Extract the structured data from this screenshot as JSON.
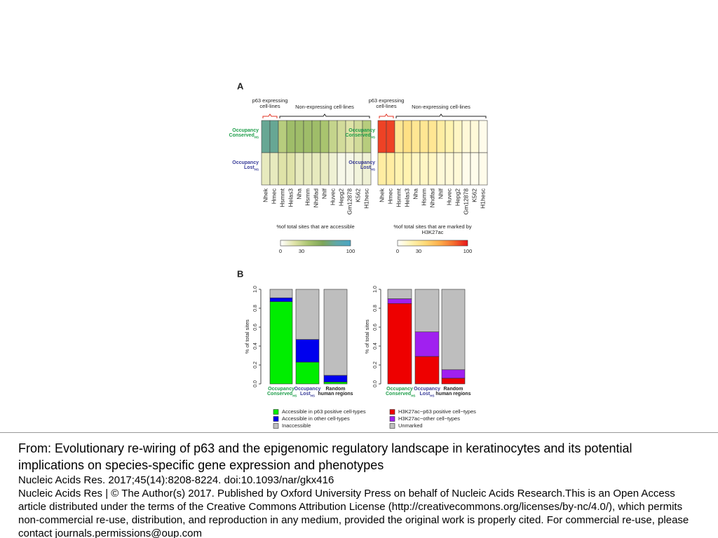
{
  "panels": [
    "A",
    "B"
  ],
  "chart_data": [
    {
      "type": "heatmap",
      "groups": [
        "p63 expressing cell-lines",
        "Non-expressing cell-lines"
      ],
      "rows": [
        {
          "lines": [
            "Occupancy",
            "Conserved"
          ],
          "subscript": "HS",
          "color": "#1e9e4a"
        },
        {
          "lines": [
            "Occupancy",
            "Lost"
          ],
          "subscript": "HS",
          "color": "#3a3e9a"
        }
      ],
      "columns": [
        "Nhek",
        "Hmec",
        "Hsmmt",
        "Helas3",
        "Nha",
        "Hsmm",
        "Nhdfad",
        "Nhlf",
        "Huvec",
        "Hepg2",
        "Gm12878",
        "K562",
        "H1hesc"
      ],
      "z": [
        [
          75,
          75,
          35,
          45,
          45,
          45,
          45,
          40,
          30,
          25,
          20,
          25,
          35
        ],
        [
          15,
          15,
          20,
          20,
          15,
          15,
          15,
          15,
          10,
          5,
          5,
          8,
          10
        ]
      ],
      "colorscale": [
        "#ffffff",
        "#dfe3a8",
        "#a9c46f",
        "#7fa658",
        "#5fa7a8",
        "#4aa6c4"
      ],
      "zlim": [
        0,
        100
      ],
      "zticks": [
        0,
        30,
        100
      ],
      "colorbar_label": "%of total sites that are accessible"
    },
    {
      "type": "heatmap",
      "groups": [
        "p63 expressing cell-lines",
        "Non-expressing cell-lines"
      ],
      "rows": [
        {
          "lines": [
            "Occupancy",
            "Conserved"
          ],
          "subscript": "HS",
          "color": "#1e9e4a"
        },
        {
          "lines": [
            "Occupancy",
            "Lost"
          ],
          "subscript": "HS",
          "color": "#3a3e9a"
        }
      ],
      "columns": [
        "Nhek",
        "Hmec",
        "Hsmmt",
        "Helas3",
        "Nha",
        "Hsmm",
        "Nhdfad",
        "Nhlf",
        "Huvec",
        "Hepg2",
        "Gm12878",
        "K562",
        "H1hesc"
      ],
      "z": [
        [
          90,
          90,
          30,
          35,
          30,
          30,
          30,
          25,
          20,
          15,
          10,
          10,
          5
        ],
        [
          25,
          25,
          20,
          20,
          15,
          15,
          15,
          10,
          10,
          10,
          5,
          5,
          5
        ]
      ],
      "colorscale": [
        "#ffffff",
        "#fff3b0",
        "#fed976",
        "#fdae4b",
        "#f46d2e",
        "#e8161b"
      ],
      "zlim": [
        0,
        100
      ],
      "zticks": [
        0,
        30,
        100
      ],
      "colorbar_label": "%of total sites that are marked by H3K27ac"
    },
    {
      "type": "stacked_bar",
      "y_label": "% of total sites",
      "categories": [
        "Occupancy Conserved",
        "Occupancy Lost",
        "Random human regions"
      ],
      "category_subscripts": [
        "HS",
        "HS",
        null
      ],
      "category_colors": [
        "#1e9e4a",
        "#3a3e9a",
        "#222222"
      ],
      "series": [
        {
          "name": "Accessible in p63 positive cell-types",
          "color": "#00ee00",
          "values": [
            0.87,
            0.23,
            0.02
          ]
        },
        {
          "name": "Accessible in other cell-types",
          "color": "#0000ee",
          "values": [
            0.04,
            0.24,
            0.07
          ]
        },
        {
          "name": "Inaccessible",
          "color": "#bebebe",
          "values": [
            0.09,
            0.53,
            0.91
          ]
        }
      ],
      "ylim": [
        0,
        1
      ],
      "yticks": [
        {
          "value": 0,
          "label": "0.0"
        },
        0.2,
        0.4,
        0.6,
        0.8,
        {
          "value": 1,
          "label": "1.0"
        }
      ]
    },
    {
      "type": "stacked_bar",
      "y_label": "% of total sites",
      "categories": [
        "Occupancy Conserved",
        "Occupancy Lost",
        "Random human regions"
      ],
      "category_subscripts": [
        "HS",
        "HS",
        null
      ],
      "category_colors": [
        "#1e9e4a",
        "#3a3e9a",
        "#222222"
      ],
      "series": [
        {
          "name": "H3K27ac−p63 positive cell−types",
          "color": "#ee0000",
          "values": [
            0.85,
            0.29,
            0.06
          ]
        },
        {
          "name": "H3K27ac−other cell−types",
          "color": "#a020f0",
          "values": [
            0.05,
            0.26,
            0.09
          ]
        },
        {
          "name": "Unmarked",
          "color": "#bebebe",
          "values": [
            0.1,
            0.45,
            0.85
          ]
        }
      ],
      "ylim": [
        0,
        1
      ],
      "yticks": [
        {
          "value": 0,
          "label": "0.0"
        },
        0.2,
        0.4,
        0.6,
        0.8,
        {
          "value": 1,
          "label": "1.0"
        }
      ]
    }
  ],
  "caption": {
    "title": "From: Evolutionary re-wiring of p63 and the epigenomic regulatory landscape in keratinocytes and its potential implications on species-specific gene expression and phenotypes",
    "citation": "Nucleic Acids Res. 2017;45(14):8208-8224. doi:10.1093/nar/gkx416",
    "license": "Nucleic Acids Res | © The Author(s) 2017. Published by Oxford University Press on behalf of Nucleic Acids Research.This is an Open Access article distributed under the terms of the Creative Commons Attribution License (http://creativecommons.org/licenses/by-nc/4.0/), which permits non-commercial re-use, distribution, and reproduction in any medium, provided the original work is properly cited. For commercial re-use, please contact journals.permissions@oup.com"
  }
}
